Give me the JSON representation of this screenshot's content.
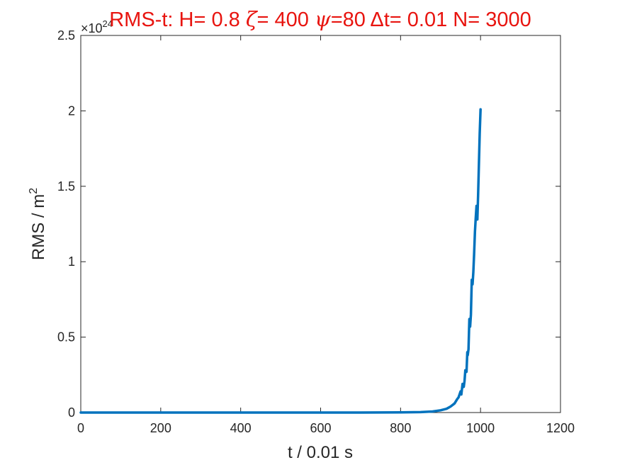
{
  "chart_data": {
    "type": "line",
    "title": {
      "prefix": "RMS-t:  H= 0.8 ",
      "zeta_symbol": "ζ",
      "zeta_text": "= 400 ",
      "psi_symbol": "ψ",
      "psi_text": "=80 ",
      "delta_symbol": "Δ",
      "rest": "t= 0.01 N= 3000"
    },
    "title_color": "#e8140f",
    "xlabel": "t / 0.01 s",
    "ylabel_main": "RMS / m",
    "ylabel_sup": "2",
    "y_exponent_base": "×10",
    "y_exponent_power": "24",
    "xlim": [
      0,
      1200
    ],
    "ylim": [
      0,
      2.5
    ],
    "xticks": [
      "0",
      "200",
      "400",
      "600",
      "800",
      "1000",
      "1200"
    ],
    "yticks": [
      "0",
      "0.5",
      "1",
      "1.5",
      "2",
      "2.5"
    ],
    "grid": false,
    "line_color": "#0072bd",
    "series": [
      {
        "x": [
          0,
          100,
          200,
          300,
          400,
          500,
          600,
          700,
          800,
          850,
          880,
          900,
          915,
          925,
          935,
          942,
          945,
          950,
          952,
          955,
          958,
          960,
          962,
          965,
          967,
          968,
          970,
          972,
          974,
          976,
          978,
          980,
          982,
          984,
          986,
          988,
          990,
          992,
          994,
          996,
          998,
          1000
        ],
        "y": [
          0,
          0,
          0,
          0,
          0,
          0,
          0,
          0,
          0.001,
          0.003,
          0.007,
          0.015,
          0.025,
          0.04,
          0.06,
          0.09,
          0.1,
          0.14,
          0.12,
          0.19,
          0.17,
          0.21,
          0.28,
          0.27,
          0.4,
          0.38,
          0.42,
          0.62,
          0.57,
          0.65,
          0.88,
          0.85,
          0.93,
          1.05,
          1.2,
          1.29,
          1.37,
          1.28,
          1.45,
          1.65,
          1.85,
          2.01
        ]
      }
    ]
  }
}
